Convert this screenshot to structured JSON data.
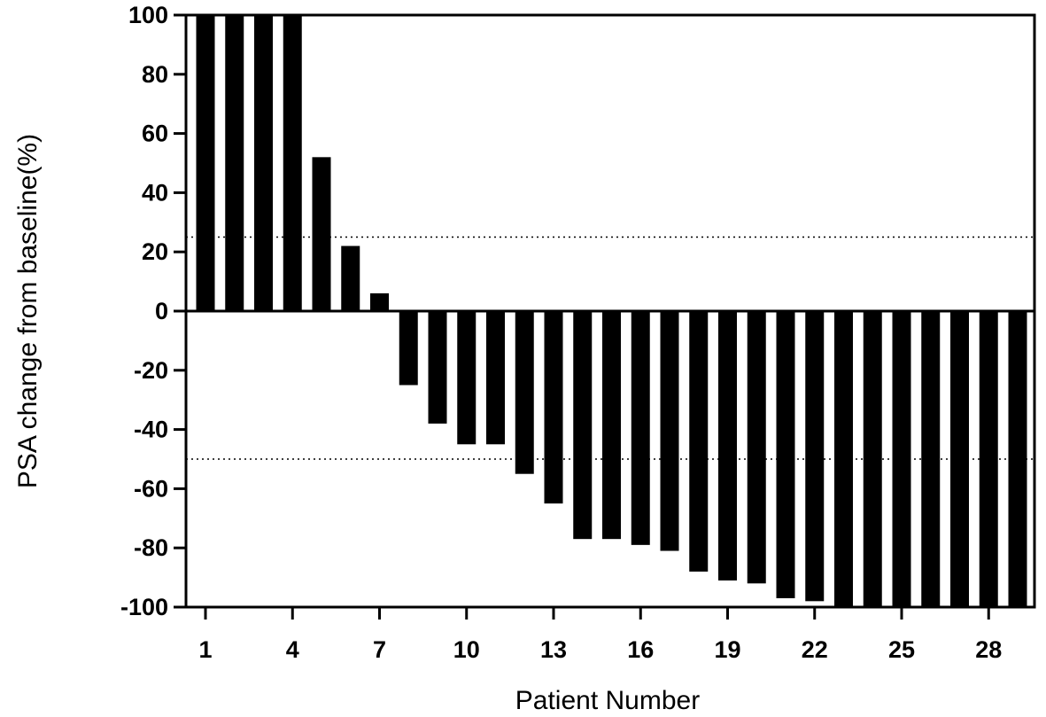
{
  "chart_data": {
    "type": "bar",
    "xlabel": "Patient Number",
    "ylabel": "PSA change from baseline(%)",
    "ylim": [
      -100,
      100
    ],
    "yticks": [
      100,
      80,
      60,
      40,
      20,
      0,
      -20,
      -40,
      -60,
      -80,
      -100
    ],
    "xticks": [
      1,
      4,
      7,
      10,
      13,
      16,
      19,
      22,
      25,
      28
    ],
    "x": [
      1,
      2,
      3,
      4,
      5,
      6,
      7,
      8,
      9,
      10,
      11,
      12,
      13,
      14,
      15,
      16,
      17,
      18,
      19,
      20,
      21,
      22,
      23,
      24,
      25,
      26,
      27,
      28,
      29
    ],
    "values": [
      100,
      100,
      100,
      100,
      52,
      22,
      6,
      -25,
      -38,
      -45,
      -45,
      -55,
      -65,
      -77,
      -77,
      -79,
      -81,
      -88,
      -91,
      -92,
      -97,
      -98,
      -100,
      -100,
      -100,
      -100,
      -100,
      -100,
      -100
    ],
    "reference_lines": [
      25,
      -50
    ],
    "grid": false,
    "bar_color": "#000000"
  }
}
